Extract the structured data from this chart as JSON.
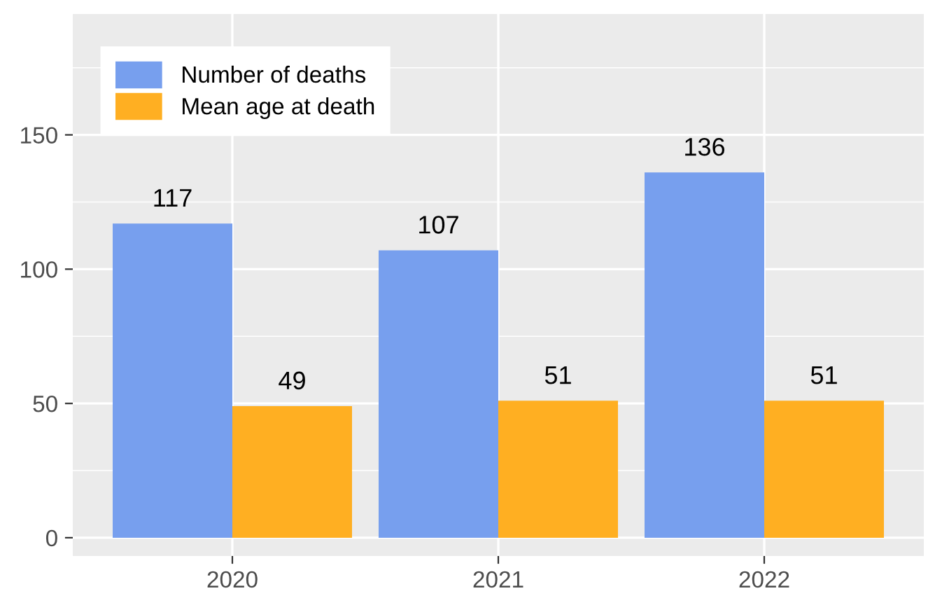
{
  "chart_data": {
    "type": "bar",
    "categories": [
      "2020",
      "2021",
      "2022"
    ],
    "series": [
      {
        "name": "Number of deaths",
        "color": "#779fee",
        "values": [
          117,
          107,
          136
        ]
      },
      {
        "name": "Mean age at death",
        "color": "#ffaf22",
        "values": [
          49,
          51,
          51
        ]
      }
    ],
    "ylim": [
      -6.8,
      195
    ],
    "yticks": [
      0,
      50,
      100,
      150
    ],
    "grid": true,
    "legend": "top left",
    "data_labels": true
  }
}
